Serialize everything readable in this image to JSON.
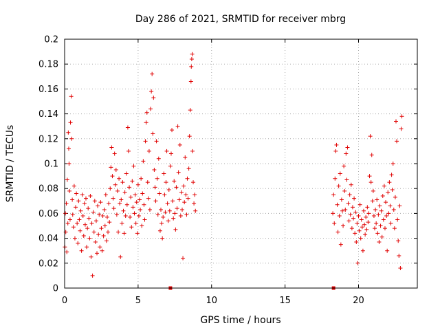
{
  "chart_data": {
    "type": "scatter",
    "title": "Day 286 of 2021, SRMTID for receiver mbrg",
    "xlabel": "GPS time / hours",
    "ylabel": "SRMTID / TECUs",
    "xlim": [
      0,
      24
    ],
    "ylim": [
      0,
      0.2
    ],
    "xticks": [
      0,
      5,
      10,
      15,
      20
    ],
    "xtick_labels": [
      "0",
      "5",
      "10",
      "15",
      "20"
    ],
    "yticks": [
      0,
      0.02,
      0.04,
      0.06,
      0.08,
      0.1,
      0.12,
      0.14,
      0.16,
      0.18,
      0.2
    ],
    "ytick_labels": [
      "0",
      "0.02",
      "0.04",
      "0.06",
      "0.08",
      "0.1",
      "0.12",
      "0.14",
      "0.16",
      "0.18",
      "0.2"
    ],
    "grid": true,
    "marker": "+",
    "color": "#e00000",
    "series": [
      {
        "name": "SRMTID",
        "points": [
          [
            0.02,
            0.033
          ],
          [
            0.05,
            0.06
          ],
          [
            0.08,
            0.045
          ],
          [
            0.12,
            0.068
          ],
          [
            0.15,
            0.029
          ],
          [
            0.18,
            0.087
          ],
          [
            0.22,
            0.052
          ],
          [
            0.25,
            0.125
          ],
          [
            0.28,
            0.112
          ],
          [
            0.3,
            0.1
          ],
          [
            0.33,
            0.078
          ],
          [
            0.37,
            0.055
          ],
          [
            0.4,
            0.133
          ],
          [
            0.45,
            0.154
          ],
          [
            0.48,
            0.12
          ],
          [
            0.52,
            0.071
          ],
          [
            0.55,
            0.059
          ],
          [
            0.6,
            0.049
          ],
          [
            0.65,
            0.082
          ],
          [
            0.7,
            0.04
          ],
          [
            0.75,
            0.065
          ],
          [
            0.8,
            0.076
          ],
          [
            0.85,
            0.052
          ],
          [
            0.9,
            0.036
          ],
          [
            0.95,
            0.07
          ],
          [
            1.0,
            0.055
          ],
          [
            1.05,
            0.046
          ],
          [
            1.1,
            0.062
          ],
          [
            1.15,
            0.03
          ],
          [
            1.2,
            0.075
          ],
          [
            1.25,
            0.058
          ],
          [
            1.3,
            0.042
          ],
          [
            1.35,
            0.068
          ],
          [
            1.4,
            0.051
          ],
          [
            1.45,
            0.072
          ],
          [
            1.5,
            0.033
          ],
          [
            1.55,
            0.048
          ],
          [
            1.6,
            0.064
          ],
          [
            1.65,
            0.056
          ],
          [
            1.7,
            0.04
          ],
          [
            1.75,
            0.074
          ],
          [
            1.8,
            0.025
          ],
          [
            1.85,
            0.052
          ],
          [
            1.9,
            0.01
          ],
          [
            1.95,
            0.061
          ],
          [
            2.0,
            0.045
          ],
          [
            2.05,
            0.07
          ],
          [
            2.1,
            0.037
          ],
          [
            2.15,
            0.054
          ],
          [
            2.2,
            0.028
          ],
          [
            2.25,
            0.066
          ],
          [
            2.3,
            0.043
          ],
          [
            2.35,
            0.059
          ],
          [
            2.4,
            0.033
          ],
          [
            2.45,
            0.069
          ],
          [
            2.5,
            0.048
          ],
          [
            2.55,
            0.03
          ],
          [
            2.6,
            0.058
          ],
          [
            2.65,
            0.042
          ],
          [
            2.7,
            0.063
          ],
          [
            2.75,
            0.05
          ],
          [
            2.8,
            0.075
          ],
          [
            2.85,
            0.038
          ],
          [
            2.9,
            0.057
          ],
          [
            2.95,
            0.045
          ],
          [
            3.0,
            0.068
          ],
          [
            3.05,
            0.053
          ],
          [
            3.1,
            0.08
          ],
          [
            3.15,
            0.097
          ],
          [
            3.2,
            0.113
          ],
          [
            3.25,
            0.09
          ],
          [
            3.3,
            0.072
          ],
          [
            3.35,
            0.064
          ],
          [
            3.4,
            0.108
          ],
          [
            3.45,
            0.083
          ],
          [
            3.5,
            0.095
          ],
          [
            3.55,
            0.059
          ],
          [
            3.6,
            0.078
          ],
          [
            3.65,
            0.045
          ],
          [
            3.7,
            0.088
          ],
          [
            3.75,
            0.068
          ],
          [
            3.8,
            0.025
          ],
          [
            3.85,
            0.071
          ],
          [
            3.9,
            0.052
          ],
          [
            3.95,
            0.085
          ],
          [
            4.0,
            0.062
          ],
          [
            4.05,
            0.044
          ],
          [
            4.1,
            0.077
          ],
          [
            4.15,
            0.058
          ],
          [
            4.2,
            0.092
          ],
          [
            4.25,
            0.067
          ],
          [
            4.3,
            0.129
          ],
          [
            4.35,
            0.11
          ],
          [
            4.4,
            0.081
          ],
          [
            4.45,
            0.057
          ],
          [
            4.5,
            0.073
          ],
          [
            4.55,
            0.049
          ],
          [
            4.6,
            0.086
          ],
          [
            4.65,
            0.065
          ],
          [
            4.7,
            0.098
          ],
          [
            4.75,
            0.06
          ],
          [
            4.8,
            0.075
          ],
          [
            4.85,
            0.052
          ],
          [
            4.9,
            0.069
          ],
          [
            4.95,
            0.044
          ],
          [
            5.0,
            0.083
          ],
          [
            5.05,
            0.058
          ],
          [
            5.1,
            0.071
          ],
          [
            5.15,
            0.063
          ],
          [
            5.2,
            0.088
          ],
          [
            5.25,
            0.05
          ],
          [
            5.3,
            0.076
          ],
          [
            5.35,
            0.102
          ],
          [
            5.4,
            0.067
          ],
          [
            5.45,
            0.055
          ],
          [
            5.5,
            0.118
          ],
          [
            5.55,
            0.133
          ],
          [
            5.6,
            0.141
          ],
          [
            5.65,
            0.085
          ],
          [
            5.7,
            0.072
          ],
          [
            5.75,
            0.11
          ],
          [
            5.8,
            0.063
          ],
          [
            5.85,
            0.144
          ],
          [
            5.9,
            0.158
          ],
          [
            5.95,
            0.172
          ],
          [
            6.0,
            0.124
          ],
          [
            6.05,
            0.153
          ],
          [
            6.1,
            0.095
          ],
          [
            6.15,
            0.081
          ],
          [
            6.2,
            0.07
          ],
          [
            6.25,
            0.118
          ],
          [
            6.3,
            0.088
          ],
          [
            6.35,
            0.059
          ],
          [
            6.4,
            0.104
          ],
          [
            6.45,
            0.076
          ],
          [
            6.5,
            0.046
          ],
          [
            6.55,
            0.063
          ],
          [
            6.6,
            0.052
          ],
          [
            6.65,
            0.04
          ],
          [
            6.7,
            0.057
          ],
          [
            6.75,
            0.092
          ],
          [
            6.8,
            0.075
          ],
          [
            6.85,
            0.061
          ],
          [
            6.9,
            0.085
          ],
          [
            6.95,
            0.11
          ],
          [
            7.0,
            0.068
          ],
          [
            7.05,
            0.054
          ],
          [
            7.1,
            0.079
          ],
          [
            7.15,
            0.062
          ],
          [
            7.2,
            0.098
          ],
          [
            7.25,
            0.108
          ],
          [
            7.3,
            0.127
          ],
          [
            7.35,
            0.07
          ],
          [
            7.4,
            0.056
          ],
          [
            7.45,
            0.086
          ],
          [
            7.5,
            0.06
          ],
          [
            7.55,
            0.047
          ],
          [
            7.6,
            0.081
          ],
          [
            7.65,
            0.064
          ],
          [
            7.7,
            0.13
          ],
          [
            7.75,
            0.093
          ],
          [
            7.8,
            0.071
          ],
          [
            7.85,
            0.115
          ],
          [
            7.9,
            0.058
          ],
          [
            7.95,
            0.077
          ],
          [
            8.0,
            0.063
          ],
          [
            8.05,
            0.024
          ],
          [
            8.1,
            0.082
          ],
          [
            8.15,
            0.069
          ],
          [
            8.2,
            0.105
          ],
          [
            8.25,
            0.075
          ],
          [
            8.3,
            0.059
          ],
          [
            8.35,
            0.088
          ],
          [
            8.4,
            0.072
          ],
          [
            8.45,
            0.096
          ],
          [
            8.5,
            0.122
          ],
          [
            8.55,
            0.143
          ],
          [
            8.6,
            0.166
          ],
          [
            8.62,
            0.178
          ],
          [
            8.65,
            0.184
          ],
          [
            8.68,
            0.188
          ],
          [
            8.7,
            0.11
          ],
          [
            8.75,
            0.085
          ],
          [
            8.8,
            0.068
          ],
          [
            8.85,
            0.075
          ],
          [
            8.9,
            0.062
          ],
          [
            18.25,
            0.06
          ],
          [
            18.3,
            0.075
          ],
          [
            18.35,
            0.052
          ],
          [
            18.4,
            0.088
          ],
          [
            18.45,
            0.11
          ],
          [
            18.5,
            0.115
          ],
          [
            18.55,
            0.067
          ],
          [
            18.6,
            0.045
          ],
          [
            18.65,
            0.082
          ],
          [
            18.7,
            0.058
          ],
          [
            18.75,
            0.092
          ],
          [
            18.8,
            0.035
          ],
          [
            18.85,
            0.071
          ],
          [
            18.9,
            0.062
          ],
          [
            18.95,
            0.05
          ],
          [
            19.0,
            0.098
          ],
          [
            19.05,
            0.078
          ],
          [
            19.1,
            0.063
          ],
          [
            19.15,
            0.108
          ],
          [
            19.2,
            0.087
          ],
          [
            19.25,
            0.113
          ],
          [
            19.3,
            0.068
          ],
          [
            19.35,
            0.054
          ],
          [
            19.4,
            0.075
          ],
          [
            19.45,
            0.059
          ],
          [
            19.5,
            0.083
          ],
          [
            19.55,
            0.048
          ],
          [
            19.6,
            0.065
          ],
          [
            19.65,
            0.056
          ],
          [
            19.7,
            0.072
          ],
          [
            19.75,
            0.044
          ],
          [
            19.8,
            0.061
          ],
          [
            19.85,
            0.037
          ],
          [
            19.9,
            0.052
          ],
          [
            19.95,
            0.02
          ],
          [
            20.0,
            0.058
          ],
          [
            20.05,
            0.046
          ],
          [
            20.1,
            0.067
          ],
          [
            20.15,
            0.04
          ],
          [
            20.2,
            0.055
          ],
          [
            20.25,
            0.049
          ],
          [
            20.3,
            0.03
          ],
          [
            20.35,
            0.062
          ],
          [
            20.4,
            0.051
          ],
          [
            20.45,
            0.043
          ],
          [
            20.5,
            0.057
          ],
          [
            20.55,
            0.047
          ],
          [
            20.6,
            0.065
          ],
          [
            20.65,
            0.053
          ],
          [
            20.7,
            0.06
          ],
          [
            20.75,
            0.09
          ],
          [
            20.8,
            0.122
          ],
          [
            20.85,
            0.085
          ],
          [
            20.9,
            0.107
          ],
          [
            20.95,
            0.07
          ],
          [
            21.0,
            0.078
          ],
          [
            21.05,
            0.058
          ],
          [
            21.1,
            0.048
          ],
          [
            21.15,
            0.063
          ],
          [
            21.2,
            0.052
          ],
          [
            21.25,
            0.071
          ],
          [
            21.3,
            0.044
          ],
          [
            21.35,
            0.059
          ],
          [
            21.4,
            0.037
          ],
          [
            21.45,
            0.066
          ],
          [
            21.5,
            0.05
          ],
          [
            21.55,
            0.062
          ],
          [
            21.6,
            0.041
          ],
          [
            21.65,
            0.074
          ],
          [
            21.7,
            0.055
          ],
          [
            21.75,
            0.082
          ],
          [
            21.8,
            0.048
          ],
          [
            21.85,
            0.069
          ],
          [
            21.9,
            0.058
          ],
          [
            21.95,
            0.03
          ],
          [
            22.0,
            0.077
          ],
          [
            22.05,
            0.06
          ],
          [
            22.1,
            0.085
          ],
          [
            22.15,
            0.066
          ],
          [
            22.2,
            0.052
          ],
          [
            22.25,
            0.091
          ],
          [
            22.3,
            0.079
          ],
          [
            22.35,
            0.1
          ],
          [
            22.4,
            0.063
          ],
          [
            22.45,
            0.048
          ],
          [
            22.5,
            0.073
          ],
          [
            22.55,
            0.134
          ],
          [
            22.6,
            0.118
          ],
          [
            22.65,
            0.055
          ],
          [
            22.7,
            0.038
          ],
          [
            22.75,
            0.026
          ],
          [
            22.8,
            0.066
          ],
          [
            22.85,
            0.016
          ],
          [
            22.9,
            0.128
          ],
          [
            22.95,
            0.138
          ]
        ]
      }
    ],
    "baseline_markers": [
      [
        7.2,
        0.0
      ],
      [
        18.3,
        0.0
      ]
    ]
  }
}
